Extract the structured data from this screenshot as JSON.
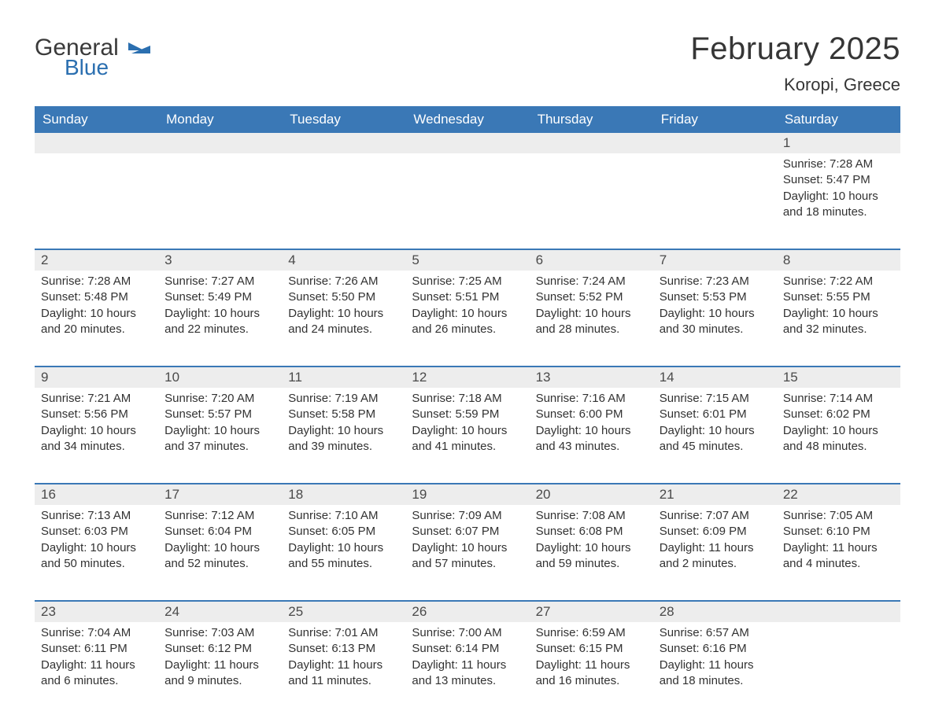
{
  "logo": {
    "main": "General",
    "sub": "Blue"
  },
  "title": "February 2025",
  "location": "Koropi, Greece",
  "colors": {
    "header_bg": "#3a78b6",
    "header_text": "#ffffff",
    "strip_bg": "#ededed",
    "rule": "#3a78b6",
    "text": "#323232",
    "logo_dark": "#3a3a3a",
    "logo_blue": "#2b6fb0"
  },
  "weekdays": [
    "Sunday",
    "Monday",
    "Tuesday",
    "Wednesday",
    "Thursday",
    "Friday",
    "Saturday"
  ],
  "weeks": [
    [
      null,
      null,
      null,
      null,
      null,
      null,
      {
        "n": "1",
        "sr": "Sunrise: 7:28 AM",
        "ss": "Sunset: 5:47 PM",
        "d1": "Daylight: 10 hours",
        "d2": "and 18 minutes."
      }
    ],
    [
      {
        "n": "2",
        "sr": "Sunrise: 7:28 AM",
        "ss": "Sunset: 5:48 PM",
        "d1": "Daylight: 10 hours",
        "d2": "and 20 minutes."
      },
      {
        "n": "3",
        "sr": "Sunrise: 7:27 AM",
        "ss": "Sunset: 5:49 PM",
        "d1": "Daylight: 10 hours",
        "d2": "and 22 minutes."
      },
      {
        "n": "4",
        "sr": "Sunrise: 7:26 AM",
        "ss": "Sunset: 5:50 PM",
        "d1": "Daylight: 10 hours",
        "d2": "and 24 minutes."
      },
      {
        "n": "5",
        "sr": "Sunrise: 7:25 AM",
        "ss": "Sunset: 5:51 PM",
        "d1": "Daylight: 10 hours",
        "d2": "and 26 minutes."
      },
      {
        "n": "6",
        "sr": "Sunrise: 7:24 AM",
        "ss": "Sunset: 5:52 PM",
        "d1": "Daylight: 10 hours",
        "d2": "and 28 minutes."
      },
      {
        "n": "7",
        "sr": "Sunrise: 7:23 AM",
        "ss": "Sunset: 5:53 PM",
        "d1": "Daylight: 10 hours",
        "d2": "and 30 minutes."
      },
      {
        "n": "8",
        "sr": "Sunrise: 7:22 AM",
        "ss": "Sunset: 5:55 PM",
        "d1": "Daylight: 10 hours",
        "d2": "and 32 minutes."
      }
    ],
    [
      {
        "n": "9",
        "sr": "Sunrise: 7:21 AM",
        "ss": "Sunset: 5:56 PM",
        "d1": "Daylight: 10 hours",
        "d2": "and 34 minutes."
      },
      {
        "n": "10",
        "sr": "Sunrise: 7:20 AM",
        "ss": "Sunset: 5:57 PM",
        "d1": "Daylight: 10 hours",
        "d2": "and 37 minutes."
      },
      {
        "n": "11",
        "sr": "Sunrise: 7:19 AM",
        "ss": "Sunset: 5:58 PM",
        "d1": "Daylight: 10 hours",
        "d2": "and 39 minutes."
      },
      {
        "n": "12",
        "sr": "Sunrise: 7:18 AM",
        "ss": "Sunset: 5:59 PM",
        "d1": "Daylight: 10 hours",
        "d2": "and 41 minutes."
      },
      {
        "n": "13",
        "sr": "Sunrise: 7:16 AM",
        "ss": "Sunset: 6:00 PM",
        "d1": "Daylight: 10 hours",
        "d2": "and 43 minutes."
      },
      {
        "n": "14",
        "sr": "Sunrise: 7:15 AM",
        "ss": "Sunset: 6:01 PM",
        "d1": "Daylight: 10 hours",
        "d2": "and 45 minutes."
      },
      {
        "n": "15",
        "sr": "Sunrise: 7:14 AM",
        "ss": "Sunset: 6:02 PM",
        "d1": "Daylight: 10 hours",
        "d2": "and 48 minutes."
      }
    ],
    [
      {
        "n": "16",
        "sr": "Sunrise: 7:13 AM",
        "ss": "Sunset: 6:03 PM",
        "d1": "Daylight: 10 hours",
        "d2": "and 50 minutes."
      },
      {
        "n": "17",
        "sr": "Sunrise: 7:12 AM",
        "ss": "Sunset: 6:04 PM",
        "d1": "Daylight: 10 hours",
        "d2": "and 52 minutes."
      },
      {
        "n": "18",
        "sr": "Sunrise: 7:10 AM",
        "ss": "Sunset: 6:05 PM",
        "d1": "Daylight: 10 hours",
        "d2": "and 55 minutes."
      },
      {
        "n": "19",
        "sr": "Sunrise: 7:09 AM",
        "ss": "Sunset: 6:07 PM",
        "d1": "Daylight: 10 hours",
        "d2": "and 57 minutes."
      },
      {
        "n": "20",
        "sr": "Sunrise: 7:08 AM",
        "ss": "Sunset: 6:08 PM",
        "d1": "Daylight: 10 hours",
        "d2": "and 59 minutes."
      },
      {
        "n": "21",
        "sr": "Sunrise: 7:07 AM",
        "ss": "Sunset: 6:09 PM",
        "d1": "Daylight: 11 hours",
        "d2": "and 2 minutes."
      },
      {
        "n": "22",
        "sr": "Sunrise: 7:05 AM",
        "ss": "Sunset: 6:10 PM",
        "d1": "Daylight: 11 hours",
        "d2": "and 4 minutes."
      }
    ],
    [
      {
        "n": "23",
        "sr": "Sunrise: 7:04 AM",
        "ss": "Sunset: 6:11 PM",
        "d1": "Daylight: 11 hours",
        "d2": "and 6 minutes."
      },
      {
        "n": "24",
        "sr": "Sunrise: 7:03 AM",
        "ss": "Sunset: 6:12 PM",
        "d1": "Daylight: 11 hours",
        "d2": "and 9 minutes."
      },
      {
        "n": "25",
        "sr": "Sunrise: 7:01 AM",
        "ss": "Sunset: 6:13 PM",
        "d1": "Daylight: 11 hours",
        "d2": "and 11 minutes."
      },
      {
        "n": "26",
        "sr": "Sunrise: 7:00 AM",
        "ss": "Sunset: 6:14 PM",
        "d1": "Daylight: 11 hours",
        "d2": "and 13 minutes."
      },
      {
        "n": "27",
        "sr": "Sunrise: 6:59 AM",
        "ss": "Sunset: 6:15 PM",
        "d1": "Daylight: 11 hours",
        "d2": "and 16 minutes."
      },
      {
        "n": "28",
        "sr": "Sunrise: 6:57 AM",
        "ss": "Sunset: 6:16 PM",
        "d1": "Daylight: 11 hours",
        "d2": "and 18 minutes."
      },
      null
    ]
  ]
}
